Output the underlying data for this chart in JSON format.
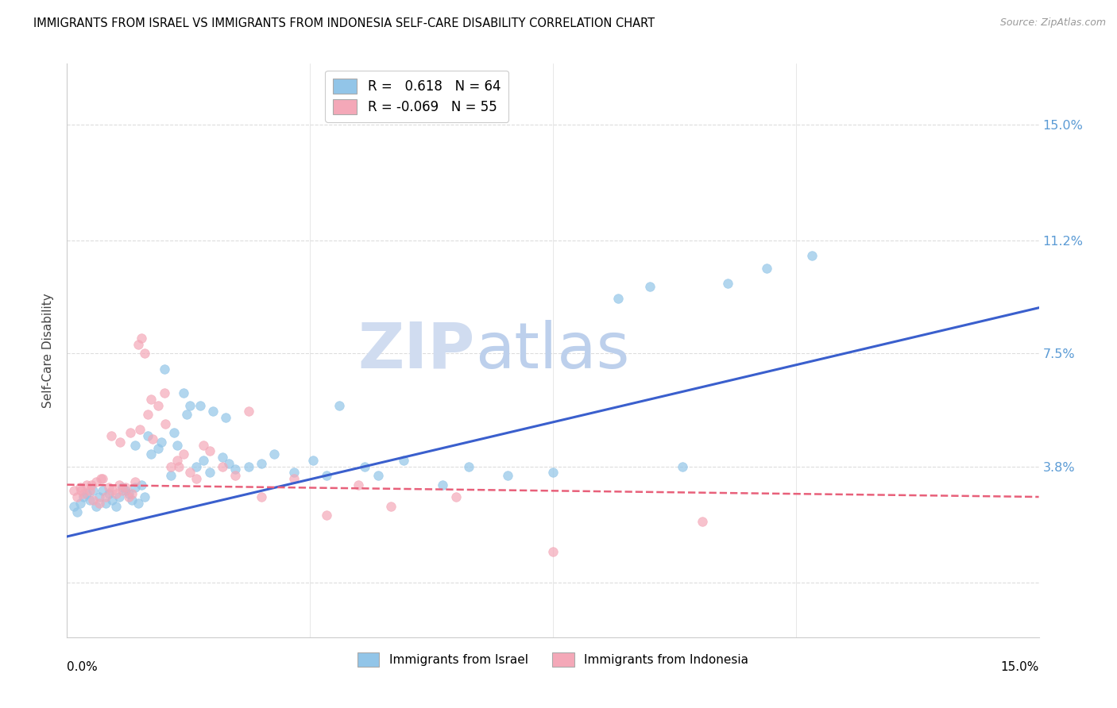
{
  "title": "IMMIGRANTS FROM ISRAEL VS IMMIGRANTS FROM INDONESIA SELF-CARE DISABILITY CORRELATION CHART",
  "source": "Source: ZipAtlas.com",
  "ylabel": "Self-Care Disability",
  "legend_bottom_left": "Immigrants from Israel",
  "legend_bottom_right": "Immigrants from Indonesia",
  "r_israel": "0.618",
  "n_israel": "64",
  "r_indonesia": "-0.069",
  "n_indonesia": "55",
  "xlim": [
    0.0,
    15.0
  ],
  "ylim": [
    -1.8,
    17.0
  ],
  "yticks": [
    0.0,
    3.8,
    7.5,
    11.2,
    15.0
  ],
  "ytick_labels": [
    "",
    "3.8%",
    "7.5%",
    "11.2%",
    "15.0%"
  ],
  "color_israel": "#92C5E8",
  "color_indonesia": "#F4A8B8",
  "color_line_israel": "#3A5FCD",
  "color_line_indonesia": "#E8607A",
  "watermark_zip": "ZIP",
  "watermark_atlas": "atlas",
  "israel_x": [
    0.1,
    0.15,
    0.2,
    0.25,
    0.3,
    0.35,
    0.4,
    0.45,
    0.5,
    0.55,
    0.6,
    0.65,
    0.7,
    0.75,
    0.8,
    0.85,
    0.9,
    0.95,
    1.0,
    1.05,
    1.1,
    1.15,
    1.2,
    1.3,
    1.4,
    1.5,
    1.6,
    1.7,
    1.8,
    1.9,
    2.0,
    2.1,
    2.2,
    2.4,
    2.5,
    2.6,
    2.8,
    3.0,
    3.2,
    3.5,
    3.8,
    4.0,
    4.2,
    4.6,
    4.8,
    5.2,
    5.8,
    6.2,
    6.8,
    7.5,
    8.5,
    9.0,
    9.5,
    10.2,
    10.8,
    11.5,
    1.05,
    1.25,
    1.45,
    1.65,
    1.85,
    2.05,
    2.25,
    2.45
  ],
  "israel_y": [
    2.5,
    2.3,
    2.6,
    2.8,
    2.9,
    2.7,
    3.0,
    2.5,
    2.8,
    3.0,
    2.6,
    2.9,
    2.7,
    2.5,
    2.8,
    3.1,
    3.0,
    2.9,
    2.7,
    3.1,
    2.6,
    3.2,
    2.8,
    4.2,
    4.4,
    7.0,
    3.5,
    4.5,
    6.2,
    5.8,
    3.8,
    4.0,
    3.6,
    4.1,
    3.9,
    3.7,
    3.8,
    3.9,
    4.2,
    3.6,
    4.0,
    3.5,
    5.8,
    3.8,
    3.5,
    4.0,
    3.2,
    3.8,
    3.5,
    3.6,
    9.3,
    9.7,
    3.8,
    9.8,
    10.3,
    10.7,
    4.5,
    4.8,
    4.6,
    4.9,
    5.5,
    5.8,
    5.6,
    5.4
  ],
  "indonesia_x": [
    0.1,
    0.15,
    0.2,
    0.25,
    0.3,
    0.35,
    0.4,
    0.45,
    0.5,
    0.55,
    0.6,
    0.65,
    0.7,
    0.75,
    0.8,
    0.85,
    0.9,
    0.95,
    1.0,
    1.05,
    1.1,
    1.15,
    1.2,
    1.25,
    1.3,
    1.4,
    1.5,
    1.6,
    1.7,
    1.8,
    1.9,
    2.0,
    2.1,
    2.2,
    2.4,
    2.6,
    2.8,
    3.0,
    3.5,
    4.0,
    4.5,
    5.0,
    6.0,
    7.5,
    9.8,
    0.22,
    0.38,
    0.52,
    0.68,
    0.82,
    0.98,
    1.12,
    1.32,
    1.52,
    1.72
  ],
  "indonesia_y": [
    3.0,
    2.8,
    3.1,
    2.9,
    3.2,
    3.0,
    2.7,
    3.3,
    2.6,
    3.4,
    2.8,
    3.1,
    3.0,
    2.9,
    3.2,
    3.0,
    3.1,
    2.8,
    2.9,
    3.3,
    7.8,
    8.0,
    7.5,
    5.5,
    6.0,
    5.8,
    6.2,
    3.8,
    4.0,
    4.2,
    3.6,
    3.4,
    4.5,
    4.3,
    3.8,
    3.5,
    5.6,
    2.8,
    3.4,
    2.2,
    3.2,
    2.5,
    2.8,
    1.0,
    2.0,
    3.0,
    3.2,
    3.4,
    4.8,
    4.6,
    4.9,
    5.0,
    4.7,
    5.2,
    3.8
  ]
}
